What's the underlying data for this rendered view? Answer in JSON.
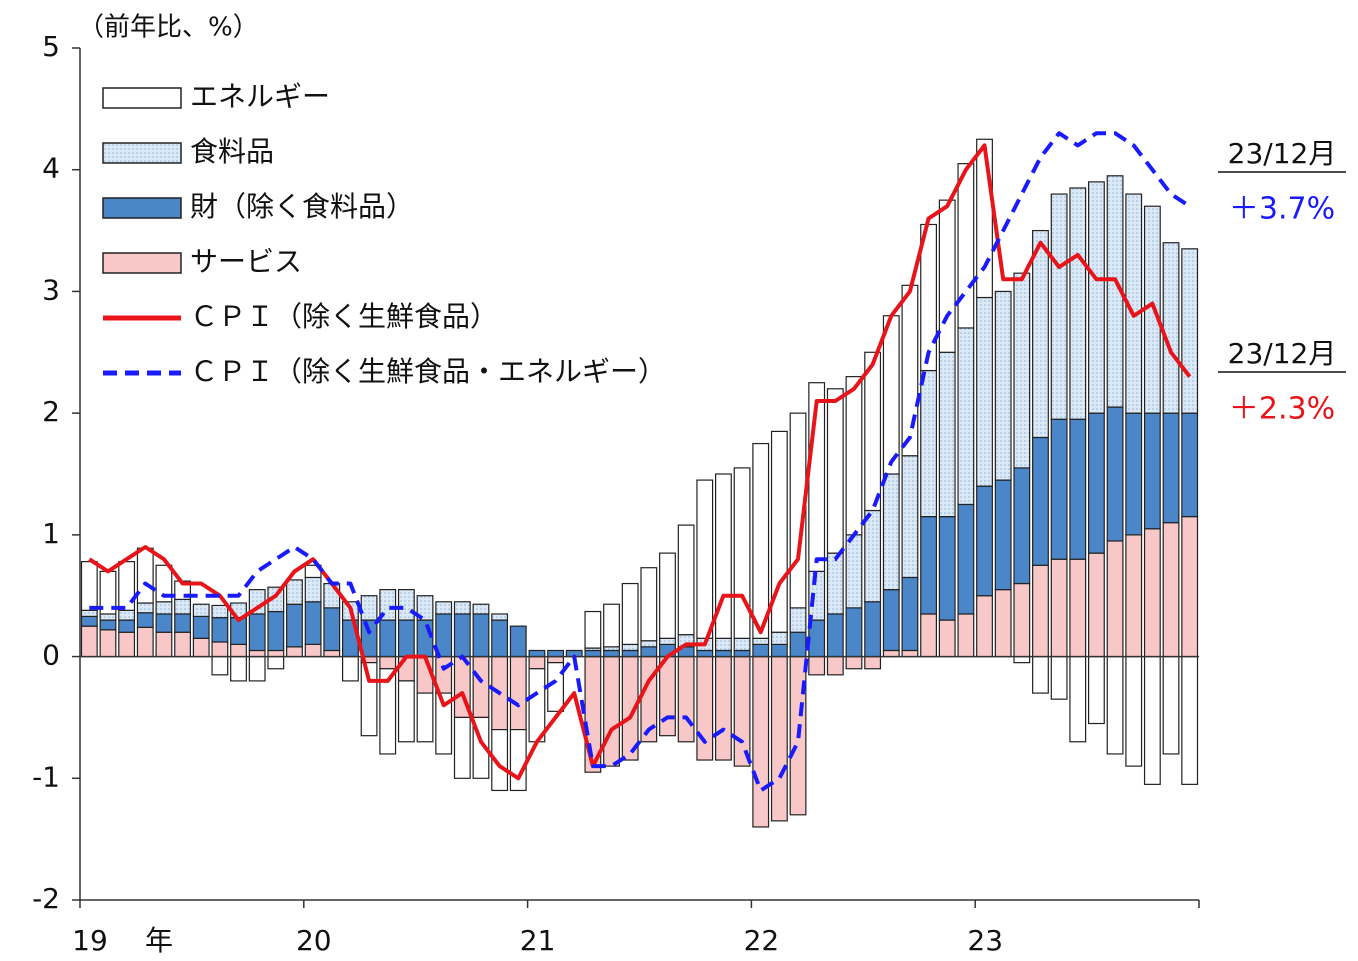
{
  "chart_data": {
    "type": "bar",
    "y_axis_label": "（前年比、%）",
    "x_unit": "年",
    "categories": [
      "19",
      null,
      null,
      null,
      null,
      null,
      null,
      null,
      null,
      null,
      null,
      null,
      "20",
      null,
      null,
      null,
      null,
      null,
      null,
      null,
      null,
      null,
      null,
      null,
      "21",
      null,
      null,
      null,
      null,
      null,
      null,
      null,
      null,
      null,
      null,
      null,
      "22",
      null,
      null,
      null,
      null,
      null,
      null,
      null,
      null,
      null,
      null,
      null,
      "23",
      null,
      null,
      null,
      null,
      null,
      null,
      null,
      null,
      null,
      null,
      null
    ],
    "ylim": [
      -2,
      5
    ],
    "yticks": [
      -2,
      -1,
      0,
      1,
      2,
      3,
      4,
      5
    ],
    "series": [
      {
        "name": "エネルギー",
        "type": "bar",
        "color": "#ffffff",
        "values": [
          0.4,
          0.35,
          0.4,
          0.45,
          0.3,
          0.15,
          0.0,
          -0.15,
          -0.2,
          -0.2,
          -0.1,
          0.0,
          0.1,
          0.0,
          -0.2,
          -0.6,
          -0.7,
          -0.5,
          -0.4,
          -0.5,
          -0.5,
          -0.5,
          -0.5,
          -0.5,
          -0.6,
          -0.4,
          0.0,
          0.3,
          0.35,
          0.5,
          0.6,
          0.7,
          0.9,
          1.3,
          1.35,
          1.4,
          1.6,
          1.65,
          1.6,
          1.55,
          1.35,
          1.3,
          1.3,
          1.3,
          1.4,
          1.2,
          1.25,
          1.35,
          1.3,
          0.0,
          -0.05,
          -0.3,
          -0.35,
          -0.7,
          -0.55,
          -0.8,
          -0.9,
          -1.05,
          -0.8,
          -1.05
        ]
      },
      {
        "name": "食料品",
        "type": "bar",
        "color": "#cfe2f3",
        "values": [
          0.05,
          0.05,
          0.08,
          0.08,
          0.1,
          0.12,
          0.1,
          0.1,
          0.12,
          0.2,
          0.2,
          0.2,
          0.2,
          0.2,
          0.15,
          0.2,
          0.25,
          0.25,
          0.2,
          0.1,
          0.1,
          0.08,
          0.05,
          0.0,
          0.0,
          0.0,
          0.0,
          0.02,
          0.03,
          0.05,
          0.05,
          0.05,
          0.1,
          0.1,
          0.1,
          0.1,
          0.05,
          0.1,
          0.2,
          0.4,
          0.5,
          0.6,
          0.75,
          0.95,
          1.0,
          1.2,
          1.35,
          1.45,
          1.55,
          1.55,
          1.6,
          1.7,
          1.85,
          1.9,
          1.9,
          1.9,
          1.8,
          1.7,
          1.4,
          1.35
        ]
      },
      {
        "name": "財（除く食料品）",
        "type": "bar",
        "color": "#4a86c8",
        "values": [
          0.08,
          0.08,
          0.1,
          0.12,
          0.15,
          0.15,
          0.18,
          0.2,
          0.22,
          0.3,
          0.32,
          0.35,
          0.35,
          0.35,
          0.3,
          0.3,
          0.3,
          0.3,
          0.3,
          0.35,
          0.35,
          0.35,
          0.3,
          0.25,
          0.05,
          0.05,
          0.05,
          0.05,
          0.05,
          0.05,
          0.08,
          0.1,
          0.08,
          0.05,
          0.05,
          0.05,
          0.1,
          0.1,
          0.2,
          0.3,
          0.35,
          0.4,
          0.45,
          0.5,
          0.6,
          0.8,
          0.85,
          0.9,
          0.9,
          0.9,
          0.95,
          1.05,
          1.15,
          1.15,
          1.15,
          1.1,
          1.0,
          0.95,
          0.9,
          0.85
        ]
      },
      {
        "name": "サービス",
        "type": "bar",
        "color": "#f8c8c8",
        "values": [
          0.25,
          0.22,
          0.2,
          0.24,
          0.2,
          0.2,
          0.15,
          0.12,
          0.1,
          0.05,
          0.05,
          0.08,
          0.1,
          0.05,
          0.0,
          -0.05,
          -0.1,
          -0.2,
          -0.3,
          -0.3,
          -0.5,
          -0.5,
          -0.6,
          -0.6,
          -0.1,
          -0.05,
          0.0,
          -0.95,
          -0.9,
          -0.85,
          -0.7,
          -0.65,
          -0.7,
          -0.85,
          -0.85,
          -0.9,
          -1.4,
          -1.35,
          -1.3,
          -0.15,
          -0.15,
          -0.1,
          -0.1,
          0.05,
          0.05,
          0.35,
          0.3,
          0.35,
          0.5,
          0.55,
          0.6,
          0.75,
          0.8,
          0.8,
          0.85,
          0.95,
          1.0,
          1.05,
          1.1,
          1.15
        ]
      },
      {
        "name": "ＣＰＩ（除く生鮮食品）",
        "type": "line",
        "color": "#e8141a",
        "values": [
          0.8,
          0.7,
          0.8,
          0.9,
          0.8,
          0.6,
          0.6,
          0.5,
          0.3,
          0.4,
          0.5,
          0.7,
          0.8,
          0.6,
          0.4,
          -0.2,
          -0.2,
          0.0,
          0.0,
          -0.4,
          -0.3,
          -0.7,
          -0.9,
          -1.0,
          -0.7,
          -0.5,
          -0.3,
          -0.9,
          -0.6,
          -0.5,
          -0.2,
          0.0,
          0.1,
          0.1,
          0.5,
          0.5,
          0.2,
          0.6,
          0.8,
          2.1,
          2.1,
          2.2,
          2.4,
          2.8,
          3.0,
          3.6,
          3.7,
          4.0,
          4.2,
          3.1,
          3.1,
          3.4,
          3.2,
          3.3,
          3.1,
          3.1,
          2.8,
          2.9,
          2.5,
          2.3
        ]
      },
      {
        "name": "ＣＰＩ（除く生鮮食品・エネルギー）",
        "type": "line",
        "dashed": true,
        "color": "#1a1aff",
        "values": [
          0.4,
          0.4,
          0.4,
          0.6,
          0.5,
          0.5,
          0.5,
          0.5,
          0.5,
          0.7,
          0.8,
          0.9,
          0.8,
          0.6,
          0.6,
          0.2,
          0.4,
          0.4,
          0.3,
          -0.1,
          0.0,
          -0.2,
          -0.3,
          -0.4,
          -0.3,
          -0.2,
          0.0,
          -0.9,
          -0.9,
          -0.8,
          -0.6,
          -0.5,
          -0.5,
          -0.7,
          -0.6,
          -0.7,
          -1.1,
          -1.0,
          -0.7,
          0.8,
          0.8,
          1.0,
          1.2,
          1.6,
          1.8,
          2.5,
          2.8,
          3.0,
          3.2,
          3.5,
          3.8,
          4.1,
          4.3,
          4.2,
          4.3,
          4.3,
          4.2,
          4.0,
          3.8,
          3.7
        ]
      }
    ],
    "annotations": [
      {
        "label": "23/12月",
        "value_label": "＋3.7%",
        "series": 5
      },
      {
        "label": "23/12月",
        "value_label": "＋2.3%",
        "series": 4
      }
    ]
  }
}
